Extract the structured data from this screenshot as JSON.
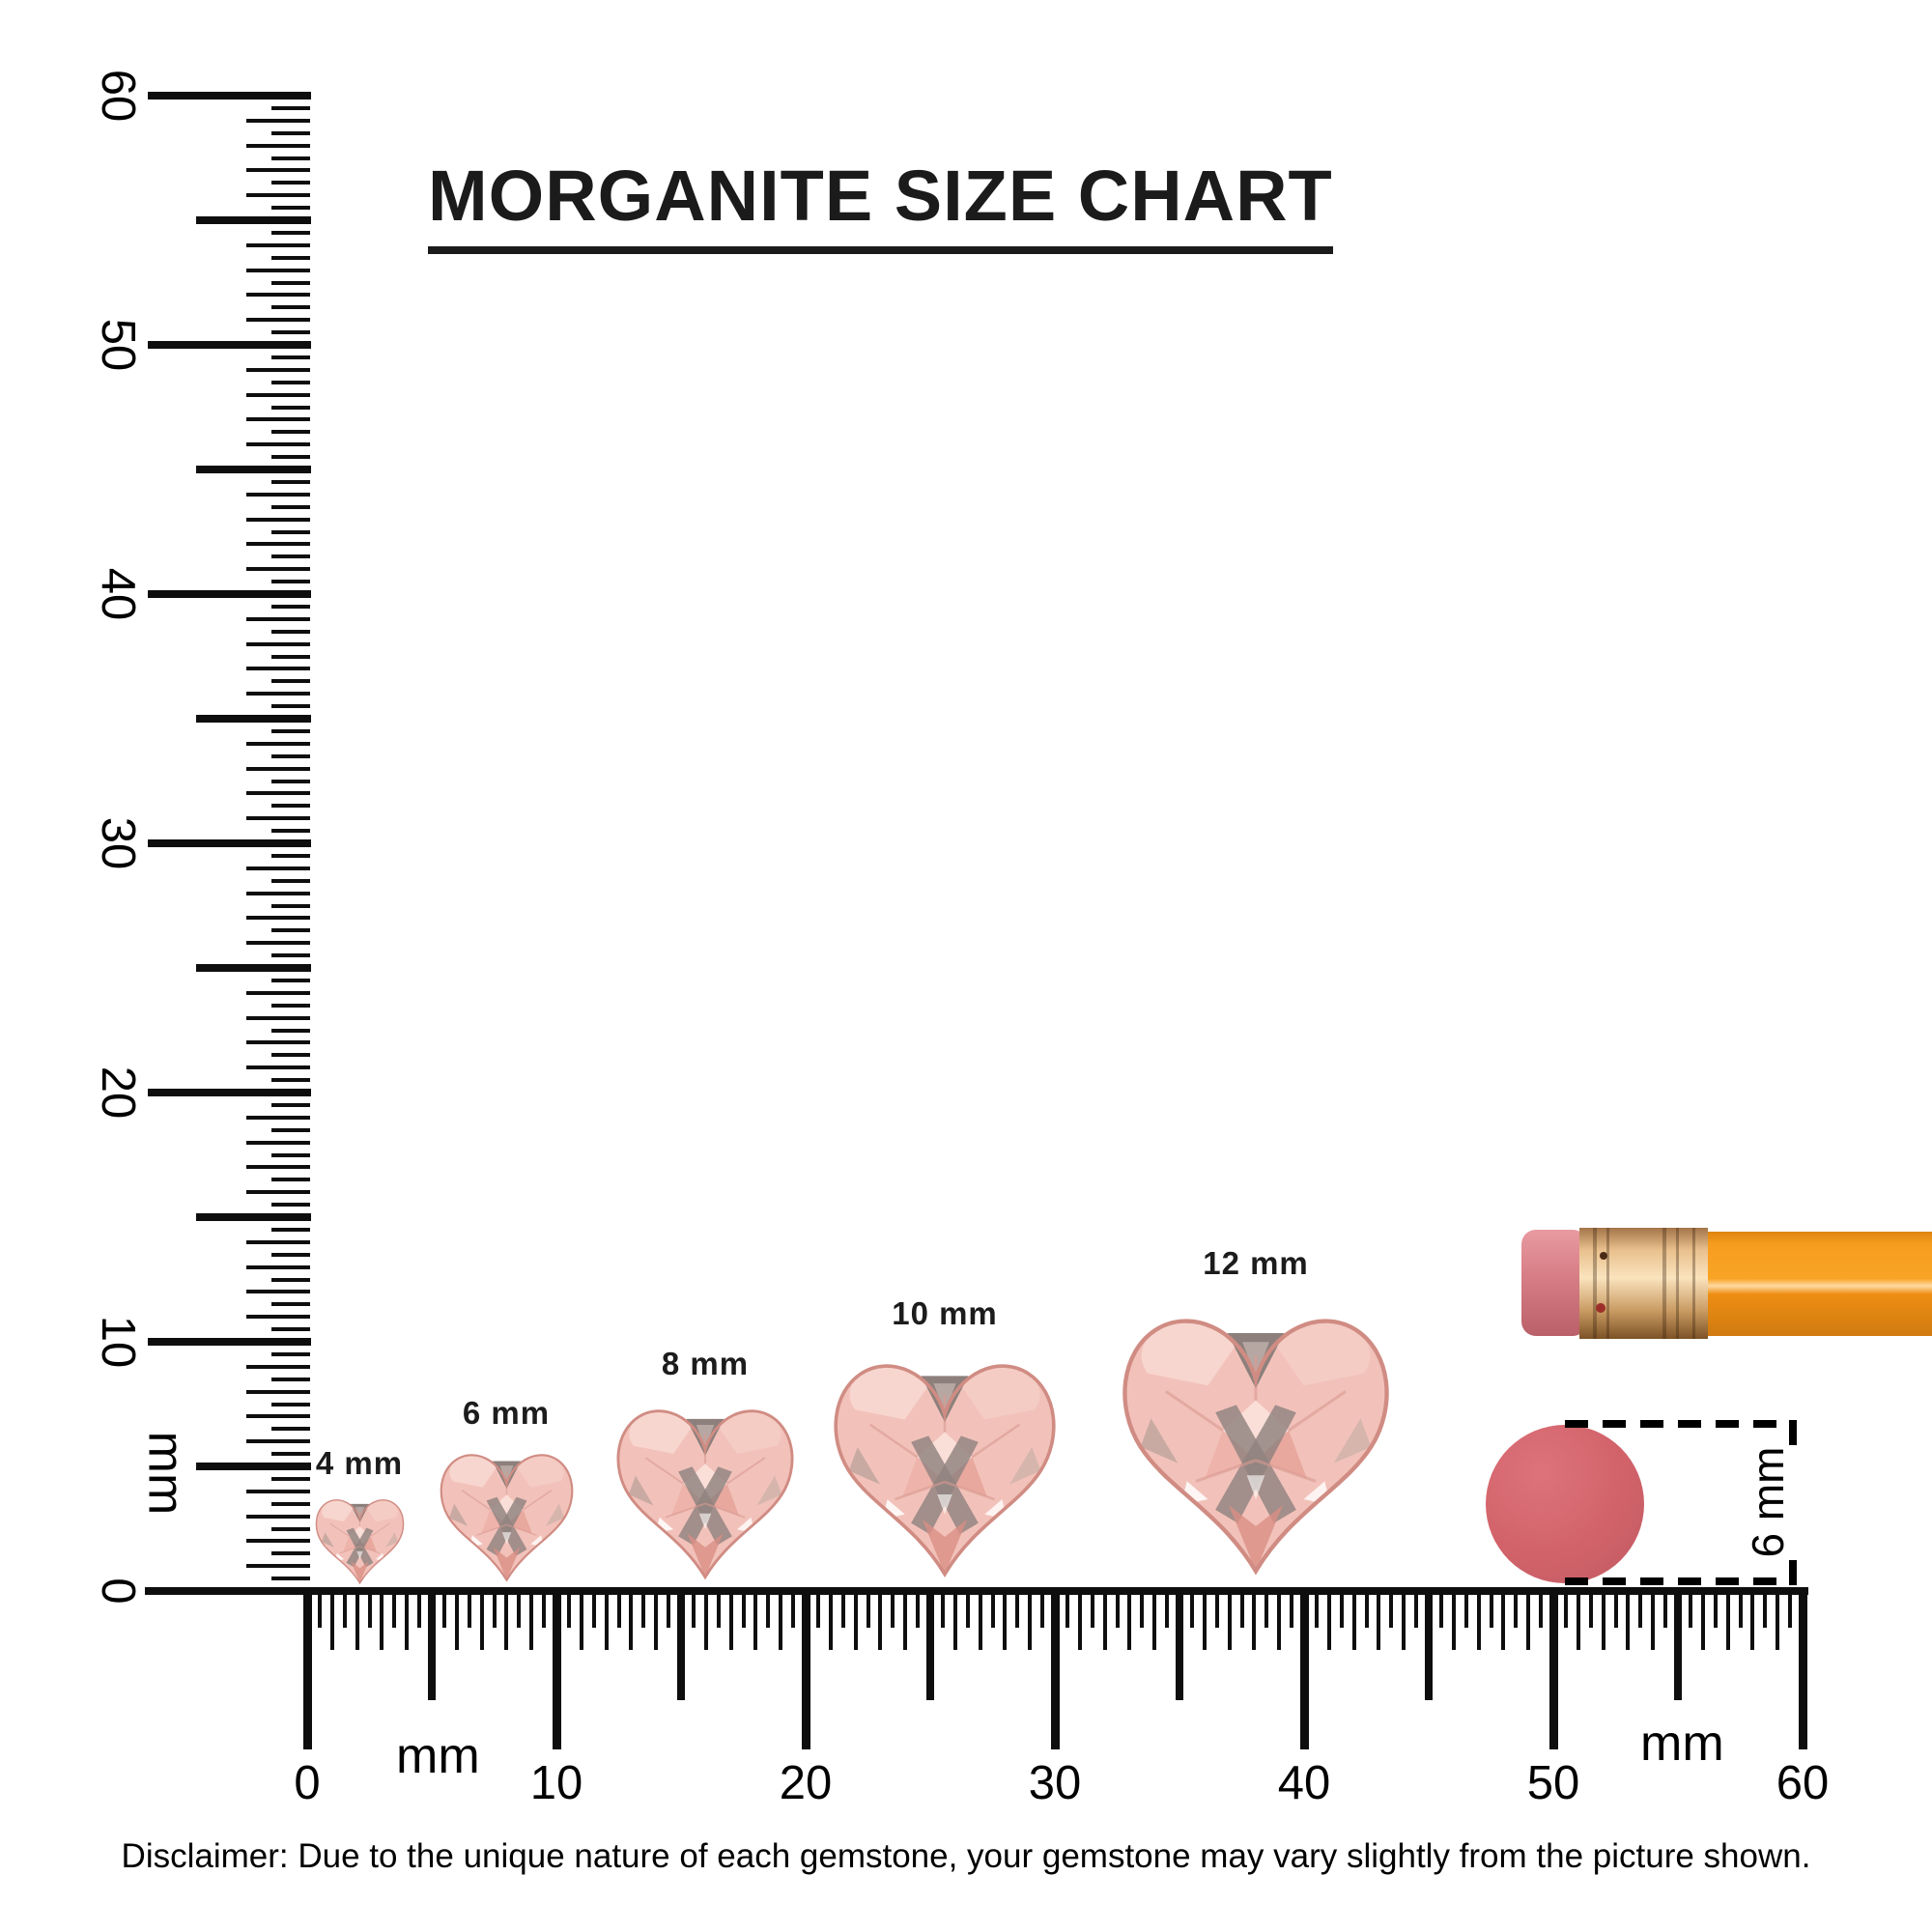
{
  "title": "MORGANITE SIZE CHART",
  "rulers": {
    "unit_label": "mm",
    "left": {
      "labels": [
        "60",
        "50",
        "40",
        "30",
        "20",
        "10",
        "0"
      ]
    },
    "bottom": {
      "labels": [
        "0",
        "10",
        "20",
        "30",
        "40",
        "50",
        "60"
      ]
    }
  },
  "gems": [
    {
      "label": "4 mm",
      "size_mm": 4
    },
    {
      "label": "6 mm",
      "size_mm": 6
    },
    {
      "label": "8 mm",
      "size_mm": 8
    },
    {
      "label": "10 mm",
      "size_mm": 10
    },
    {
      "label": "12 mm",
      "size_mm": 12
    }
  ],
  "comparison": {
    "circle_label": "6 mm",
    "circle_color": "#d2626a"
  },
  "pencil": {
    "eraser_color": "#d67d85",
    "ferrule_color": "#e9c08d",
    "body_color": "#f79c1e"
  },
  "disclaimer": "Disclaimer: Due to the unique nature of each gemstone, your gemstone may vary slightly from the picture shown.",
  "colors": {
    "ink": "#0e0e0e",
    "gem_base": "#f2c2ba",
    "gem_dark_facet": "#90837f"
  }
}
